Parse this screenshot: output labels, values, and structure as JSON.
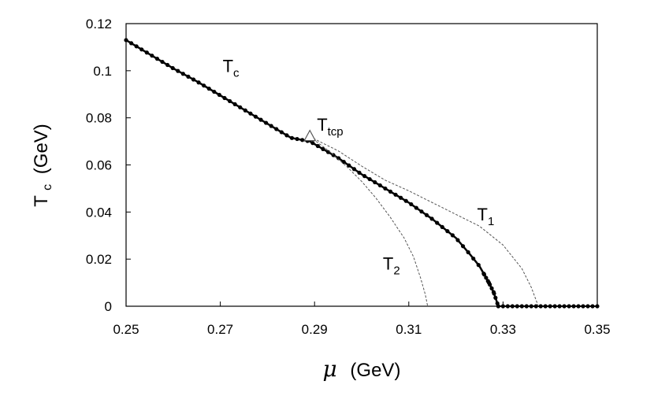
{
  "chart_data": {
    "type": "line",
    "xlabel": {
      "symbol": "μ",
      "unit": "(GeV)"
    },
    "ylabel": {
      "main": "T",
      "sub": "c",
      "unit": "(GeV)"
    },
    "xlim": [
      0.25,
      0.35
    ],
    "ylim": [
      0,
      0.12
    ],
    "x_ticks": [
      "0.25",
      "0.27",
      "0.29",
      "0.31",
      "0.33",
      "0.35"
    ],
    "y_ticks": [
      "0",
      "0.02",
      "0.04",
      "0.06",
      "0.08",
      "0.1",
      "0.12"
    ],
    "grid": false,
    "series": [
      {
        "name": "Tc",
        "style": "solid-with-markers",
        "color": "#000000",
        "x": [
          0.25,
          0.255,
          0.26,
          0.265,
          0.27,
          0.275,
          0.28,
          0.285,
          0.289,
          0.295,
          0.3,
          0.305,
          0.31,
          0.315,
          0.32,
          0.323,
          0.325,
          0.327,
          0.328,
          0.3285,
          0.329
        ],
        "y": [
          0.113,
          0.107,
          0.101,
          0.0955,
          0.0895,
          0.0835,
          0.0775,
          0.0715,
          0.07,
          0.063,
          0.056,
          0.05,
          0.044,
          0.037,
          0.029,
          0.022,
          0.017,
          0.01,
          0.006,
          0.003,
          0.0
        ],
        "x_flat": [
          0.329,
          0.35
        ],
        "y_flat": [
          0.0,
          0.0
        ]
      },
      {
        "name": "T1",
        "style": "dashed",
        "color": "#555555",
        "x": [
          0.289,
          0.295,
          0.3,
          0.305,
          0.31,
          0.315,
          0.32,
          0.325,
          0.33,
          0.334,
          0.336,
          0.3375
        ],
        "y": [
          0.072,
          0.066,
          0.0595,
          0.0535,
          0.049,
          0.044,
          0.039,
          0.034,
          0.026,
          0.016,
          0.008,
          0.0
        ]
      },
      {
        "name": "T2",
        "style": "dashed",
        "color": "#555555",
        "x": [
          0.289,
          0.293,
          0.297,
          0.3,
          0.303,
          0.306,
          0.309,
          0.311,
          0.3125,
          0.3135,
          0.314
        ],
        "y": [
          0.072,
          0.066,
          0.059,
          0.053,
          0.046,
          0.038,
          0.029,
          0.021,
          0.012,
          0.005,
          0.0
        ]
      }
    ],
    "tricritical_point": {
      "x": 0.289,
      "y": 0.072,
      "marker": "triangle"
    },
    "annotations": [
      {
        "main": "T",
        "sub": "c",
        "x": 0.2705,
        "y": 0.0995
      },
      {
        "main": "T",
        "sub": "tcp",
        "x": 0.2905,
        "y": 0.0745
      },
      {
        "main": "T",
        "sub": "1",
        "x": 0.3245,
        "y": 0.0365
      },
      {
        "main": "T",
        "sub": "2",
        "x": 0.3045,
        "y": 0.0155
      }
    ]
  }
}
